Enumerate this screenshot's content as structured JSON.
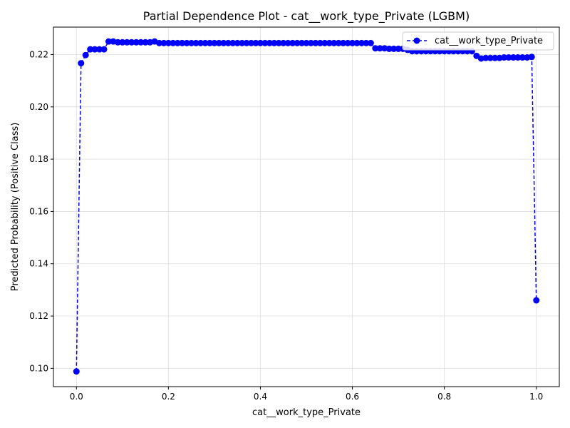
{
  "chart_data": {
    "type": "line",
    "title": "Partial Dependence Plot - cat__work_type_Private (LGBM)",
    "xlabel": "cat__work_type_Private",
    "ylabel": "Predicted Probability (Positive Class)",
    "xlim": [
      -0.05,
      1.05
    ],
    "ylim": [
      0.093,
      0.2305
    ],
    "xticks": [
      0.0,
      0.2,
      0.4,
      0.6,
      0.8,
      1.0
    ],
    "xtick_labels": [
      "0.0",
      "0.2",
      "0.4",
      "0.6",
      "0.8",
      "1.0"
    ],
    "yticks": [
      0.1,
      0.12,
      0.14,
      0.16,
      0.18,
      0.2,
      0.22
    ],
    "ytick_labels": [
      "0.10",
      "0.12",
      "0.14",
      "0.16",
      "0.18",
      "0.20",
      "0.22"
    ],
    "grid": true,
    "legend_position": "top-right",
    "series": [
      {
        "name": "cat__work_type_Private",
        "color": "#0000ff",
        "linestyle": "dashed",
        "marker": "circle",
        "x": [
          0.0,
          0.01,
          0.02,
          0.03,
          0.04,
          0.05,
          0.06,
          0.07,
          0.08,
          0.09,
          0.1,
          0.11,
          0.12,
          0.13,
          0.14,
          0.15,
          0.16,
          0.17,
          0.18,
          0.19,
          0.2,
          0.21,
          0.22,
          0.23,
          0.24,
          0.25,
          0.26,
          0.27,
          0.28,
          0.29,
          0.3,
          0.31,
          0.32,
          0.33,
          0.34,
          0.35,
          0.36,
          0.37,
          0.38,
          0.39,
          0.4,
          0.41,
          0.42,
          0.43,
          0.44,
          0.45,
          0.46,
          0.47,
          0.48,
          0.49,
          0.5,
          0.51,
          0.52,
          0.53,
          0.54,
          0.55,
          0.56,
          0.57,
          0.58,
          0.59,
          0.6,
          0.61,
          0.62,
          0.63,
          0.64,
          0.65,
          0.66,
          0.67,
          0.68,
          0.69,
          0.7,
          0.71,
          0.72,
          0.73,
          0.74,
          0.75,
          0.76,
          0.77,
          0.78,
          0.79,
          0.8,
          0.81,
          0.82,
          0.83,
          0.84,
          0.85,
          0.86,
          0.87,
          0.88,
          0.89,
          0.9,
          0.91,
          0.92,
          0.93,
          0.94,
          0.95,
          0.96,
          0.97,
          0.98,
          0.99,
          1.0
        ],
        "y": [
          0.0988,
          0.2167,
          0.2198,
          0.222,
          0.222,
          0.222,
          0.222,
          0.225,
          0.225,
          0.2247,
          0.2247,
          0.2247,
          0.2247,
          0.2247,
          0.2247,
          0.2247,
          0.2247,
          0.225,
          0.2244,
          0.2244,
          0.2244,
          0.2244,
          0.2244,
          0.2244,
          0.2244,
          0.2244,
          0.2244,
          0.2244,
          0.2244,
          0.2244,
          0.2244,
          0.2244,
          0.2244,
          0.2244,
          0.2244,
          0.2244,
          0.2244,
          0.2244,
          0.2244,
          0.2244,
          0.2244,
          0.2244,
          0.2244,
          0.2244,
          0.2244,
          0.2244,
          0.2244,
          0.2244,
          0.2244,
          0.2244,
          0.2244,
          0.2244,
          0.2244,
          0.2244,
          0.2244,
          0.2244,
          0.2244,
          0.2244,
          0.2244,
          0.2244,
          0.2244,
          0.2244,
          0.2244,
          0.2244,
          0.2244,
          0.2224,
          0.2224,
          0.2224,
          0.2222,
          0.2222,
          0.2222,
          0.2222,
          0.2218,
          0.2213,
          0.2213,
          0.2213,
          0.2213,
          0.2213,
          0.2213,
          0.2213,
          0.2213,
          0.2213,
          0.2213,
          0.2213,
          0.2213,
          0.2213,
          0.2213,
          0.2195,
          0.2185,
          0.2187,
          0.2187,
          0.2187,
          0.2187,
          0.2189,
          0.2189,
          0.2189,
          0.2189,
          0.2189,
          0.2189,
          0.2191,
          0.126
        ]
      }
    ]
  }
}
